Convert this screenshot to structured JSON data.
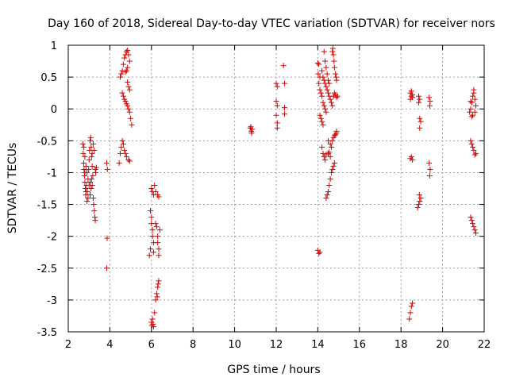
{
  "chart_data": {
    "type": "scatter",
    "title": "Day 160 of 2018, Sidereal Day-to-day VTEC variation (SDTVAR) for receiver nors",
    "xlabel": "GPS time / hours",
    "ylabel": "SDTVAR / TECUs",
    "xlim": [
      2,
      22
    ],
    "ylim": [
      -3.5,
      1
    ],
    "xticks": [
      2,
      4,
      6,
      8,
      10,
      12,
      14,
      16,
      18,
      20,
      22
    ],
    "yticks": [
      1,
      0.5,
      0,
      -0.5,
      -1,
      -1.5,
      -2,
      -2.5,
      -3,
      -3.5
    ],
    "xtick_labels": [
      "2",
      "4",
      "6",
      "8",
      "10",
      "12",
      "14",
      "16",
      "18",
      "20",
      "22"
    ],
    "ytick_labels": [
      "1",
      "0.5",
      "0",
      "-0.5",
      "-1",
      "-1.5",
      "-2",
      "-2.5",
      "-3",
      "-3.5"
    ],
    "grid": true,
    "marker": "+",
    "series_color": "#e00000",
    "series": [
      {
        "name": "SDTVAR",
        "points": [
          [
            2.7,
            -0.55
          ],
          [
            2.72,
            -0.7
          ],
          [
            2.74,
            -0.85
          ],
          [
            2.76,
            -0.95
          ],
          [
            2.78,
            -1.05
          ],
          [
            2.8,
            -1.15
          ],
          [
            2.82,
            -1.25
          ],
          [
            2.84,
            -1.35
          ],
          [
            2.75,
            -0.6
          ],
          [
            2.8,
            -0.75
          ],
          [
            2.85,
            -0.9
          ],
          [
            2.9,
            -1.0
          ],
          [
            2.88,
            -1.2
          ],
          [
            2.92,
            -1.3
          ],
          [
            2.95,
            -1.1
          ],
          [
            2.98,
            -0.95
          ],
          [
            3.0,
            -0.8
          ],
          [
            3.02,
            -0.65
          ],
          [
            3.05,
            -0.5
          ],
          [
            3.08,
            -0.45
          ],
          [
            3.1,
            -0.6
          ],
          [
            3.12,
            -0.75
          ],
          [
            3.15,
            -0.9
          ],
          [
            3.18,
            -1.05
          ],
          [
            3.0,
            -1.2
          ],
          [
            3.05,
            -1.35
          ],
          [
            3.1,
            -1.25
          ],
          [
            3.12,
            -1.1
          ],
          [
            3.15,
            -1.2
          ],
          [
            3.2,
            -1.4
          ],
          [
            3.22,
            -1.5
          ],
          [
            3.25,
            -1.6
          ],
          [
            3.28,
            -1.7
          ],
          [
            3.3,
            -1.75
          ],
          [
            3.25,
            -0.65
          ],
          [
            3.3,
            -0.95
          ],
          [
            3.32,
            -1.0
          ],
          [
            3.2,
            -0.55
          ],
          [
            2.95,
            -1.4
          ],
          [
            2.9,
            -1.45
          ],
          [
            2.85,
            -1.3
          ],
          [
            2.8,
            -1.0
          ],
          [
            3.35,
            -0.92
          ],
          [
            3.15,
            -0.7
          ],
          [
            3.05,
            -1.15
          ],
          [
            3.85,
            -0.85
          ],
          [
            3.88,
            -0.95
          ],
          [
            3.87,
            -2.03
          ],
          [
            3.85,
            -2.5
          ],
          [
            4.45,
            -0.85
          ],
          [
            4.5,
            -0.7
          ],
          [
            4.55,
            -0.6
          ],
          [
            4.6,
            -0.5
          ],
          [
            4.65,
            -0.55
          ],
          [
            4.7,
            -0.65
          ],
          [
            4.75,
            -0.7
          ],
          [
            4.8,
            -0.75
          ],
          [
            4.9,
            -0.8
          ],
          [
            4.95,
            -0.82
          ],
          [
            4.5,
            0.5
          ],
          [
            4.55,
            0.55
          ],
          [
            4.6,
            0.6
          ],
          [
            4.65,
            0.7
          ],
          [
            4.7,
            0.8
          ],
          [
            4.75,
            0.85
          ],
          [
            4.8,
            0.9
          ],
          [
            4.85,
            0.92
          ],
          [
            4.9,
            0.85
          ],
          [
            4.95,
            0.75
          ],
          [
            4.85,
            0.65
          ],
          [
            4.8,
            0.6
          ],
          [
            4.75,
            0.58
          ],
          [
            4.6,
            0.25
          ],
          [
            4.65,
            0.2
          ],
          [
            4.7,
            0.15
          ],
          [
            4.75,
            0.12
          ],
          [
            4.8,
            0.08
          ],
          [
            4.85,
            0.05
          ],
          [
            4.9,
            0.0
          ],
          [
            4.95,
            -0.05
          ],
          [
            5.0,
            -0.15
          ],
          [
            5.05,
            -0.25
          ],
          [
            4.85,
            0.42
          ],
          [
            4.9,
            0.35
          ],
          [
            4.95,
            0.3
          ],
          [
            5.9,
            -2.3
          ],
          [
            5.95,
            -2.2
          ],
          [
            5.95,
            -1.6
          ],
          [
            6.0,
            -1.7
          ],
          [
            6.0,
            -1.8
          ],
          [
            6.05,
            -1.9
          ],
          [
            6.05,
            -2.0
          ],
          [
            6.1,
            -2.1
          ],
          [
            6.1,
            -2.25
          ],
          [
            6.2,
            -1.8
          ],
          [
            6.25,
            -1.85
          ],
          [
            6.3,
            -2.0
          ],
          [
            6.3,
            -2.1
          ],
          [
            6.35,
            -2.2
          ],
          [
            6.35,
            -2.3
          ],
          [
            6.4,
            -1.9
          ],
          [
            6.0,
            -1.25
          ],
          [
            6.05,
            -1.3
          ],
          [
            6.1,
            -1.35
          ],
          [
            6.15,
            -1.2
          ],
          [
            6.2,
            -1.3
          ],
          [
            6.3,
            -1.35
          ],
          [
            6.35,
            -1.38
          ],
          [
            6.0,
            -3.35
          ],
          [
            6.02,
            -3.4
          ],
          [
            6.05,
            -3.3
          ],
          [
            6.08,
            -3.38
          ],
          [
            6.1,
            -3.42
          ],
          [
            6.15,
            -3.2
          ],
          [
            6.2,
            -3.0
          ],
          [
            6.25,
            -2.9
          ],
          [
            6.3,
            -2.8
          ],
          [
            6.35,
            -2.7
          ],
          [
            6.32,
            -2.75
          ],
          [
            6.28,
            -2.95
          ],
          [
            10.75,
            -0.3
          ],
          [
            10.8,
            -0.35
          ],
          [
            10.85,
            -0.32
          ],
          [
            10.78,
            -0.28
          ],
          [
            10.82,
            -0.38
          ],
          [
            12.0,
            0.4
          ],
          [
            12.05,
            0.35
          ],
          [
            12.0,
            0.12
          ],
          [
            12.05,
            0.05
          ],
          [
            12.0,
            -0.1
          ],
          [
            12.05,
            -0.22
          ],
          [
            12.05,
            -0.3
          ],
          [
            12.35,
            0.68
          ],
          [
            12.4,
            0.4
          ],
          [
            12.4,
            0.02
          ],
          [
            12.4,
            -0.08
          ],
          [
            14.0,
            0.72
          ],
          [
            14.05,
            0.7
          ],
          [
            14.02,
            0.55
          ],
          [
            14.1,
            0.5
          ],
          [
            14.05,
            0.4
          ],
          [
            14.1,
            0.3
          ],
          [
            14.15,
            0.25
          ],
          [
            14.2,
            0.2
          ],
          [
            14.25,
            0.1
          ],
          [
            14.3,
            0.05
          ],
          [
            14.35,
            0.0
          ],
          [
            14.4,
            -0.05
          ],
          [
            14.1,
            -0.1
          ],
          [
            14.15,
            -0.15
          ],
          [
            14.2,
            -0.2
          ],
          [
            14.25,
            -0.25
          ],
          [
            14.2,
            0.6
          ],
          [
            14.25,
            0.5
          ],
          [
            14.3,
            0.45
          ],
          [
            14.35,
            0.4
          ],
          [
            14.4,
            0.35
          ],
          [
            14.45,
            0.3
          ],
          [
            14.5,
            0.25
          ],
          [
            14.55,
            0.2
          ],
          [
            14.6,
            0.15
          ],
          [
            14.65,
            0.1
          ],
          [
            14.7,
            0.05
          ],
          [
            14.75,
            0.2
          ],
          [
            14.8,
            0.25
          ],
          [
            14.85,
            0.22
          ],
          [
            14.9,
            0.18
          ],
          [
            14.95,
            0.2
          ],
          [
            14.7,
            0.9
          ],
          [
            14.72,
            0.95
          ],
          [
            14.75,
            0.85
          ],
          [
            14.78,
            0.75
          ],
          [
            14.8,
            0.65
          ],
          [
            14.85,
            0.55
          ],
          [
            14.88,
            0.5
          ],
          [
            14.9,
            0.45
          ],
          [
            14.3,
            0.9
          ],
          [
            14.35,
            0.75
          ],
          [
            14.4,
            0.65
          ],
          [
            14.45,
            0.55
          ],
          [
            14.5,
            0.45
          ],
          [
            14.55,
            0.4
          ],
          [
            14.2,
            -0.6
          ],
          [
            14.25,
            -0.7
          ],
          [
            14.3,
            -0.75
          ],
          [
            14.35,
            -0.8
          ],
          [
            14.4,
            -0.72
          ],
          [
            14.5,
            -0.7
          ],
          [
            14.55,
            -0.68
          ],
          [
            14.6,
            -0.75
          ],
          [
            14.4,
            -1.4
          ],
          [
            14.45,
            -1.35
          ],
          [
            14.5,
            -1.3
          ],
          [
            14.55,
            -1.2
          ],
          [
            14.6,
            -1.1
          ],
          [
            14.65,
            -1.0
          ],
          [
            14.7,
            -0.95
          ],
          [
            14.75,
            -0.9
          ],
          [
            14.8,
            -0.85
          ],
          [
            14.5,
            -0.5
          ],
          [
            14.6,
            -0.55
          ],
          [
            14.65,
            -0.6
          ],
          [
            14.7,
            -0.5
          ],
          [
            14.75,
            -0.45
          ],
          [
            14.8,
            -0.42
          ],
          [
            14.85,
            -0.4
          ],
          [
            14.9,
            -0.38
          ],
          [
            14.9,
            -0.35
          ],
          [
            14.0,
            -2.22
          ],
          [
            14.05,
            -2.27
          ],
          [
            14.1,
            -2.25
          ],
          [
            18.45,
            0.25
          ],
          [
            18.5,
            0.2
          ],
          [
            18.55,
            0.18
          ],
          [
            18.45,
            0.15
          ],
          [
            18.5,
            0.28
          ],
          [
            18.55,
            0.22
          ],
          [
            18.5,
            -0.75
          ],
          [
            18.55,
            -0.8
          ],
          [
            18.45,
            -0.78
          ],
          [
            18.4,
            -3.3
          ],
          [
            18.45,
            -3.2
          ],
          [
            18.5,
            -3.1
          ],
          [
            18.55,
            -3.05
          ],
          [
            18.85,
            0.2
          ],
          [
            18.9,
            0.15
          ],
          [
            18.85,
            0.1
          ],
          [
            18.9,
            -0.15
          ],
          [
            18.95,
            -0.2
          ],
          [
            18.9,
            -0.3
          ],
          [
            18.8,
            -1.55
          ],
          [
            18.85,
            -1.5
          ],
          [
            18.9,
            -1.45
          ],
          [
            18.95,
            -1.4
          ],
          [
            18.88,
            -1.35
          ],
          [
            19.35,
            0.18
          ],
          [
            19.4,
            0.12
          ],
          [
            19.38,
            0.05
          ],
          [
            19.35,
            -0.85
          ],
          [
            19.4,
            -0.95
          ],
          [
            19.38,
            -1.05
          ],
          [
            21.3,
            -0.05
          ],
          [
            21.35,
            0.0
          ],
          [
            21.4,
            0.1
          ],
          [
            21.45,
            0.2
          ],
          [
            21.5,
            0.25
          ],
          [
            21.55,
            0.15
          ],
          [
            21.6,
            0.05
          ],
          [
            21.5,
            0.3
          ],
          [
            21.45,
            -0.1
          ],
          [
            21.55,
            -0.05
          ],
          [
            21.35,
            0.12
          ],
          [
            21.4,
            -0.12
          ],
          [
            21.35,
            -0.5
          ],
          [
            21.4,
            -0.55
          ],
          [
            21.45,
            -0.6
          ],
          [
            21.5,
            -0.65
          ],
          [
            21.55,
            -0.72
          ],
          [
            21.6,
            -0.7
          ],
          [
            21.35,
            -1.7
          ],
          [
            21.4,
            -1.75
          ],
          [
            21.45,
            -1.8
          ],
          [
            21.5,
            -1.85
          ],
          [
            21.55,
            -1.9
          ],
          [
            21.6,
            -1.95
          ]
        ]
      }
    ]
  }
}
